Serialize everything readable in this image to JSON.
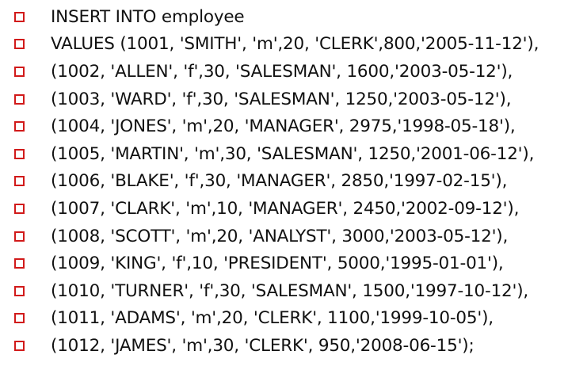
{
  "colors": {
    "bullet": "#d11a1a",
    "text": "#111111",
    "background": "#ffffff"
  },
  "bullet_icon": "hollow-square-bullet",
  "lines": [
    "INSERT INTO employee",
    "VALUES (1001, 'SMITH', 'm',20, 'CLERK',800,'2005-11-12'),",
    "(1002, 'ALLEN', 'f',30, 'SALESMAN', 1600,'2003-05-12'),",
    "(1003, 'WARD', 'f',30, 'SALESMAN', 1250,'2003-05-12'),",
    "(1004, 'JONES', 'm',20, 'MANAGER', 2975,'1998-05-18'),",
    "(1005, 'MARTIN', 'm',30, 'SALESMAN', 1250,'2001-06-12'),",
    "(1006, 'BLAKE', 'f',30, 'MANAGER', 2850,'1997-02-15'),",
    "(1007, 'CLARK', 'm',10, 'MANAGER', 2450,'2002-09-12'),",
    "(1008, 'SCOTT', 'm',20, 'ANALYST', 3000,'2003-05-12'),",
    "(1009, 'KING', 'f',10, 'PRESIDENT', 5000,'1995-01-01'),",
    "(1010, 'TURNER', 'f',30, 'SALESMAN', 1500,'1997-10-12'),",
    "(1011, 'ADAMS', 'm',20, 'CLERK', 1100,'1999-10-05'),",
    "(1012, 'JAMES', 'm',30, 'CLERK', 950,'2008-06-15');"
  ]
}
